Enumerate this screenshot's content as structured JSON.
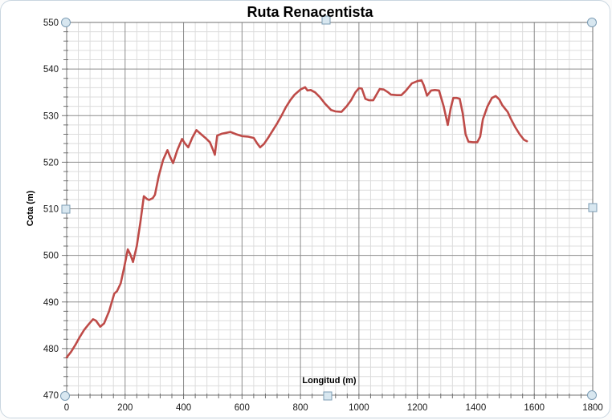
{
  "window": {
    "background": "#ffffff",
    "border_color": "#c9d6e0",
    "state": "chart-object-selected"
  },
  "chart_data": {
    "type": "line",
    "title": "Ruta Renacentista",
    "xlabel": "Longitud (m)",
    "ylabel": "Cota (m)",
    "xlim": [
      0,
      1800
    ],
    "ylim": [
      470,
      550
    ],
    "x_major_step": 200,
    "x_minor_step": 40,
    "y_major_step": 10,
    "y_minor_step": 2,
    "grid": "major+minor",
    "legend_position": "none",
    "series": [
      {
        "name": "Cota",
        "color": "#be4b48",
        "points": [
          [
            0,
            478.1
          ],
          [
            15,
            479.3
          ],
          [
            30,
            480.8
          ],
          [
            45,
            482.5
          ],
          [
            60,
            484.0
          ],
          [
            75,
            485.2
          ],
          [
            90,
            486.3
          ],
          [
            100,
            486.0
          ],
          [
            115,
            484.7
          ],
          [
            128,
            485.4
          ],
          [
            145,
            488.0
          ],
          [
            163,
            491.8
          ],
          [
            172,
            492.3
          ],
          [
            185,
            494.0
          ],
          [
            197,
            497.5
          ],
          [
            209,
            501.3
          ],
          [
            218,
            500.2
          ],
          [
            227,
            498.6
          ],
          [
            240,
            502.0
          ],
          [
            252,
            507.0
          ],
          [
            264,
            512.7
          ],
          [
            275,
            512.1
          ],
          [
            282,
            511.9
          ],
          [
            295,
            512.3
          ],
          [
            302,
            513.0
          ],
          [
            315,
            517.0
          ],
          [
            330,
            520.5
          ],
          [
            345,
            522.6
          ],
          [
            355,
            521.0
          ],
          [
            364,
            519.8
          ],
          [
            378,
            522.5
          ],
          [
            395,
            525.0
          ],
          [
            405,
            524.0
          ],
          [
            416,
            523.2
          ],
          [
            430,
            525.3
          ],
          [
            444,
            526.9
          ],
          [
            460,
            526.0
          ],
          [
            475,
            525.2
          ],
          [
            490,
            524.3
          ],
          [
            500,
            522.8
          ],
          [
            507,
            521.6
          ],
          [
            515,
            525.7
          ],
          [
            530,
            526.1
          ],
          [
            545,
            526.3
          ],
          [
            560,
            526.5
          ],
          [
            580,
            526.0
          ],
          [
            600,
            525.6
          ],
          [
            620,
            525.5
          ],
          [
            640,
            525.2
          ],
          [
            652,
            524.0
          ],
          [
            662,
            523.2
          ],
          [
            675,
            523.9
          ],
          [
            690,
            525.3
          ],
          [
            705,
            526.8
          ],
          [
            720,
            528.3
          ],
          [
            735,
            530.0
          ],
          [
            750,
            531.8
          ],
          [
            765,
            533.3
          ],
          [
            780,
            534.5
          ],
          [
            800,
            535.6
          ],
          [
            816,
            536.1
          ],
          [
            824,
            535.4
          ],
          [
            835,
            535.5
          ],
          [
            850,
            535.0
          ],
          [
            866,
            534.0
          ],
          [
            885,
            532.5
          ],
          [
            905,
            531.2
          ],
          [
            920,
            530.9
          ],
          [
            940,
            530.8
          ],
          [
            958,
            532.0
          ],
          [
            973,
            533.3
          ],
          [
            988,
            535.0
          ],
          [
            1000,
            535.9
          ],
          [
            1010,
            535.8
          ],
          [
            1022,
            533.6
          ],
          [
            1035,
            533.3
          ],
          [
            1049,
            533.3
          ],
          [
            1060,
            534.5
          ],
          [
            1071,
            535.7
          ],
          [
            1085,
            535.6
          ],
          [
            1100,
            535.0
          ],
          [
            1110,
            534.5
          ],
          [
            1130,
            534.4
          ],
          [
            1145,
            534.4
          ],
          [
            1160,
            535.3
          ],
          [
            1181,
            536.9
          ],
          [
            1200,
            537.4
          ],
          [
            1214,
            537.6
          ],
          [
            1222,
            536.5
          ],
          [
            1233,
            534.3
          ],
          [
            1247,
            535.4
          ],
          [
            1260,
            535.5
          ],
          [
            1274,
            535.4
          ],
          [
            1290,
            532.0
          ],
          [
            1304,
            528.0
          ],
          [
            1314,
            531.5
          ],
          [
            1323,
            533.8
          ],
          [
            1335,
            533.8
          ],
          [
            1345,
            533.6
          ],
          [
            1355,
            530.5
          ],
          [
            1365,
            526.0
          ],
          [
            1375,
            524.4
          ],
          [
            1390,
            524.3
          ],
          [
            1405,
            524.3
          ],
          [
            1415,
            525.5
          ],
          [
            1424,
            529.2
          ],
          [
            1440,
            532.0
          ],
          [
            1455,
            533.8
          ],
          [
            1468,
            534.2
          ],
          [
            1480,
            533.5
          ],
          [
            1490,
            532.3
          ],
          [
            1501,
            531.4
          ],
          [
            1509,
            530.8
          ],
          [
            1520,
            529.3
          ],
          [
            1535,
            527.5
          ],
          [
            1550,
            526.0
          ],
          [
            1565,
            524.8
          ],
          [
            1575,
            524.5
          ]
        ]
      }
    ]
  },
  "grid_colors": {
    "minor": "#dcdcdc",
    "major": "#8c8c8c",
    "axis_border": "#707070"
  },
  "selection_handles": {
    "corner_shape": "circle",
    "edge_shape": "square",
    "fill": "#d8e7f0",
    "stroke": "#7c9cb4"
  }
}
